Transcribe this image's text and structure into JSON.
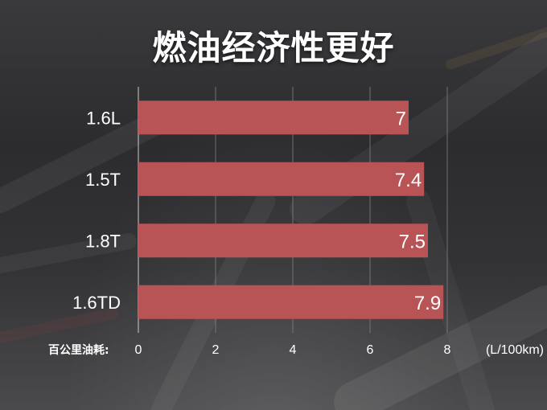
{
  "chart_data": {
    "type": "bar",
    "orientation": "horizontal",
    "title": "燃油经济性更好",
    "categories": [
      "1.6L",
      "1.5T",
      "1.8T",
      "1.6TD"
    ],
    "values": [
      7,
      7.4,
      7.5,
      7.9
    ],
    "value_labels": [
      "7",
      "7.4",
      "7.5",
      "7.9"
    ],
    "xlim": [
      0,
      8
    ],
    "x_ticks": [
      "0",
      "2",
      "4",
      "6",
      "8"
    ],
    "axis_prefix_label": "百公里油耗:",
    "unit_label": "(L/100km)",
    "grid": true,
    "legend": "none",
    "bar_color": "#b85456"
  }
}
